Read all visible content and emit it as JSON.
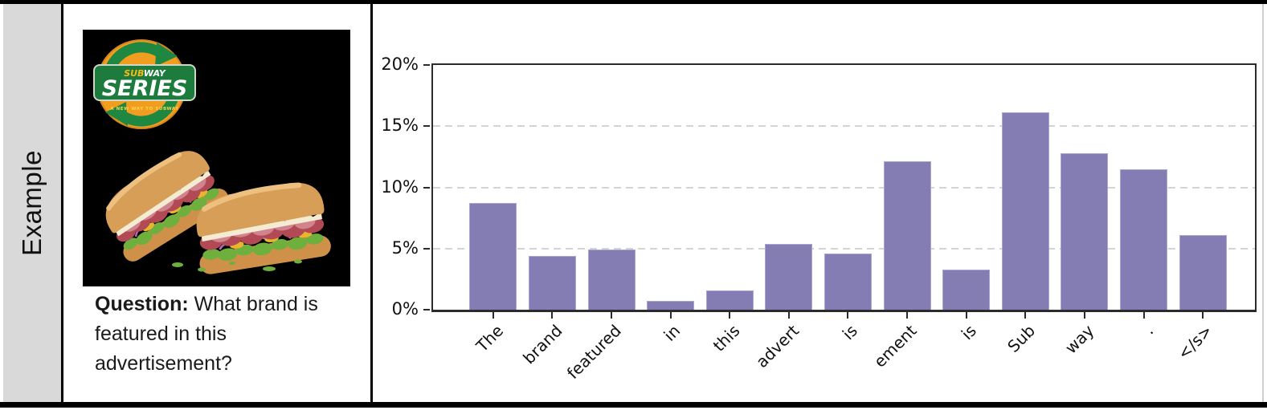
{
  "figure": {
    "row_label": "Example",
    "question": {
      "label": "Question:",
      "text": " What brand is featured in this advertisement?"
    },
    "ad": {
      "brand_top_1": "SUB",
      "brand_top_2": "WAY",
      "brand_main": "SERIES",
      "tagline": "A NEW WAY TO SUBWAY"
    }
  },
  "chart_data": {
    "type": "bar",
    "categories": [
      "The",
      "brand",
      "featured",
      "in",
      "this",
      "advert",
      "is",
      "ement",
      "is",
      "Sub",
      "way",
      ".",
      "</s>"
    ],
    "values": [
      8.7,
      4.4,
      4.9,
      0.7,
      1.6,
      5.4,
      4.6,
      12.1,
      3.3,
      16.1,
      12.8,
      11.5,
      6.1
    ],
    "title": "",
    "xlabel": "",
    "ylabel": "",
    "ylim": [
      0,
      20
    ],
    "yticks": [
      0,
      5,
      10,
      15,
      20
    ],
    "ytick_suffix": "%",
    "grid": "horizontal-dashed",
    "legend": "none",
    "bar_color": "#837db4",
    "x_label_rotation_deg": 45
  },
  "colors": {
    "bar_fill": "#837db4",
    "bar_edge": "#aaa4d2",
    "gridline": "#d4d4d4",
    "axis_spine": "#2b2b2b",
    "row_header_bg": "#d9d9d9",
    "table_border": "#000000",
    "logo_orange": "#f09d20",
    "logo_green": "#1c7b3d",
    "logo_yellow": "#fdb913",
    "ad_background": "#000000"
  }
}
